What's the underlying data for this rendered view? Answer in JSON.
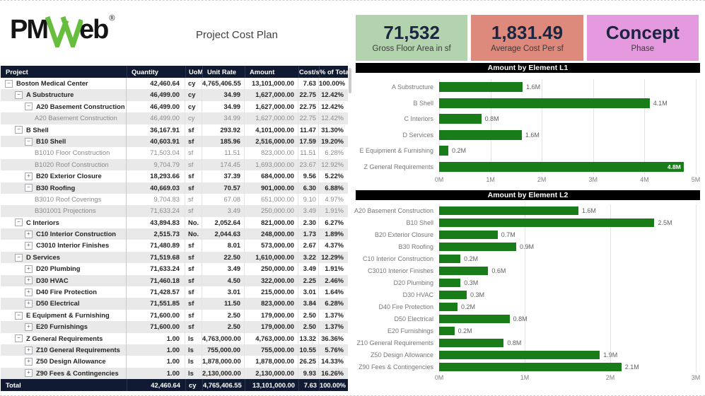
{
  "page": {
    "title": "Project Cost Plan",
    "brand": {
      "pm": "PM",
      "eb": "eb",
      "reg": "®",
      "w_icon_color": "#66bd3e"
    }
  },
  "kpis": [
    {
      "value": "71,532",
      "label": "Gross Floor Area in sf",
      "bg": "#b2d3ad"
    },
    {
      "value": "1,831.49",
      "label": "Average Cost Per sf",
      "bg": "#dd897c"
    },
    {
      "value": "Concept",
      "label": "Phase",
      "bg": "#e59ae0"
    }
  ],
  "table": {
    "header_bg": "#101b33",
    "columns": [
      "Project",
      "Quantity",
      "UoM",
      "Unit Rate",
      "Amount",
      "Cost/sf",
      "% of Total"
    ],
    "rows": [
      {
        "level": 0,
        "expand": "minus",
        "style": "strong",
        "cells": [
          "Boston Medical Center",
          "42,460.64",
          "cy",
          "4,765,406.55",
          "13,101,000.00",
          "7.63",
          "100.00%"
        ]
      },
      {
        "level": 1,
        "expand": "minus",
        "style": "strong",
        "cells": [
          "A Substructure",
          "46,499.00",
          "cy",
          "34.99",
          "1,627,000.00",
          "22.75",
          "12.42%"
        ]
      },
      {
        "level": 2,
        "expand": "minus",
        "style": "strong",
        "cells": [
          "A20 Basement Construction",
          "46,499.00",
          "cy",
          "34.99",
          "1,627,000.00",
          "22.75",
          "12.42%"
        ]
      },
      {
        "level": 3,
        "expand": null,
        "style": "leaf",
        "cells": [
          "A20 Basement Construction",
          "46,499.00",
          "cy",
          "34.99",
          "1,627,000.00",
          "22.75",
          "12.42%"
        ]
      },
      {
        "level": 1,
        "expand": "minus",
        "style": "strong",
        "cells": [
          "B Shell",
          "36,167.91",
          "sf",
          "293.92",
          "4,101,000.00",
          "11.47",
          "31.30%"
        ]
      },
      {
        "level": 2,
        "expand": "minus",
        "style": "strong",
        "cells": [
          "B10 Shell",
          "40,603.91",
          "sf",
          "185.96",
          "2,516,000.00",
          "17.59",
          "19.20%"
        ]
      },
      {
        "level": 3,
        "expand": null,
        "style": "leaf",
        "cells": [
          "B1010 Floor Construction",
          "71,503.04",
          "sf",
          "11.51",
          "823,000.00",
          "11.51",
          "6.28%"
        ]
      },
      {
        "level": 3,
        "expand": null,
        "style": "leaf",
        "cells": [
          "B1020 Roof Construction",
          "9,704.79",
          "sf",
          "174.45",
          "1,693,000.00",
          "23.67",
          "12.92%"
        ]
      },
      {
        "level": 2,
        "expand": "plus",
        "style": "strong",
        "cells": [
          "B20 Exterior Closure",
          "18,293.66",
          "sf",
          "37.39",
          "684,000.00",
          "9.56",
          "5.22%"
        ]
      },
      {
        "level": 2,
        "expand": "minus",
        "style": "strong",
        "cells": [
          "B30 Roofing",
          "40,669.03",
          "sf",
          "70.57",
          "901,000.00",
          "6.30",
          "6.88%"
        ]
      },
      {
        "level": 3,
        "expand": null,
        "style": "leaf",
        "cells": [
          "B3010 Roof Coverings",
          "9,704.83",
          "sf",
          "67.08",
          "651,000.00",
          "9.10",
          "4.97%"
        ]
      },
      {
        "level": 3,
        "expand": null,
        "style": "leaf",
        "cells": [
          "B301001 Projections",
          "71,633.24",
          "sf",
          "3.49",
          "250,000.00",
          "3.49",
          "1.91%"
        ]
      },
      {
        "level": 1,
        "expand": "minus",
        "style": "strong",
        "cells": [
          "C Interiors",
          "43,894.83",
          "No.",
          "2,052.64",
          "821,000.00",
          "2.30",
          "6.27%"
        ]
      },
      {
        "level": 2,
        "expand": "plus",
        "style": "strong",
        "cells": [
          "C10 Interior Construction",
          "2,515.73",
          "No.",
          "2,044.63",
          "248,000.00",
          "1.73",
          "1.89%"
        ]
      },
      {
        "level": 2,
        "expand": "plus",
        "style": "strong",
        "cells": [
          "C3010 Interior Finishes",
          "71,480.89",
          "sf",
          "8.01",
          "573,000.00",
          "2.67",
          "4.37%"
        ]
      },
      {
        "level": 1,
        "expand": "minus",
        "style": "strong",
        "cells": [
          "D Services",
          "71,519.68",
          "sf",
          "22.50",
          "1,610,000.00",
          "3.22",
          "12.29%"
        ]
      },
      {
        "level": 2,
        "expand": "plus",
        "style": "strong",
        "cells": [
          "D20 Plumbing",
          "71,633.24",
          "sf",
          "3.49",
          "250,000.00",
          "3.49",
          "1.91%"
        ]
      },
      {
        "level": 2,
        "expand": "plus",
        "style": "strong",
        "cells": [
          "D30 HVAC",
          "71,460.18",
          "sf",
          "4.50",
          "322,000.00",
          "2.25",
          "2.46%"
        ]
      },
      {
        "level": 2,
        "expand": "plus",
        "style": "strong",
        "cells": [
          "D40 Fire Protection",
          "71,428.57",
          "sf",
          "3.01",
          "215,000.00",
          "3.01",
          "1.64%"
        ]
      },
      {
        "level": 2,
        "expand": "plus",
        "style": "strong",
        "cells": [
          "D50 Electrical",
          "71,551.85",
          "sf",
          "11.50",
          "823,000.00",
          "3.84",
          "6.28%"
        ]
      },
      {
        "level": 1,
        "expand": "minus",
        "style": "strong",
        "cells": [
          "E Equipment & Furnishing",
          "71,600.00",
          "sf",
          "2.50",
          "179,000.00",
          "2.50",
          "1.37%"
        ]
      },
      {
        "level": 2,
        "expand": "plus",
        "style": "strong",
        "cells": [
          "E20 Furnishings",
          "71,600.00",
          "sf",
          "2.50",
          "179,000.00",
          "2.50",
          "1.37%"
        ]
      },
      {
        "level": 1,
        "expand": "minus",
        "style": "strong",
        "cells": [
          "Z General Requirements",
          "1.00",
          "ls",
          "4,763,000.00",
          "4,763,000.00",
          "13.32",
          "36.36%"
        ]
      },
      {
        "level": 2,
        "expand": "plus",
        "style": "strong",
        "cells": [
          "Z10 General Requirements",
          "1.00",
          "ls",
          "755,000.00",
          "755,000.00",
          "10.55",
          "5.76%"
        ]
      },
      {
        "level": 2,
        "expand": "plus",
        "style": "strong",
        "cells": [
          "Z50 Design Allowance",
          "1.00",
          "ls",
          "1,878,000.00",
          "1,878,000.00",
          "26.25",
          "14.33%"
        ]
      },
      {
        "level": 2,
        "expand": "plus",
        "style": "strong",
        "cells": [
          "Z90 Fees & Contingencies",
          "1.00",
          "ls",
          "2,130,000.00",
          "2,130,000.00",
          "9.93",
          "16.26%"
        ]
      }
    ],
    "total": {
      "cells": [
        "Total",
        "42,460.64",
        "cy",
        "4,765,406.55",
        "13,101,000.00",
        "7.63",
        "100.00%"
      ]
    }
  },
  "chart_data": [
    {
      "type": "bar",
      "orientation": "horizontal",
      "title": "Amount by Element L1",
      "title_bg": "#000000",
      "bar_color": "#187d18",
      "categories": [
        "A Substructure",
        "B Shell",
        "C Interiors",
        "D Services",
        "E Equipment & Furnishing",
        "Z General Requirements"
      ],
      "values_m": [
        1.627,
        4.101,
        0.821,
        1.61,
        0.179,
        4.763
      ],
      "values_label": [
        "1.6M",
        "4.1M",
        "0.8M",
        "1.6M",
        "0.2M",
        "4.8M"
      ],
      "inside_label_index": 5,
      "xlabel": "",
      "ylabel": "",
      "xlim": [
        0,
        5
      ],
      "ticks": [
        "0M",
        "1M",
        "2M",
        "3M",
        "4M",
        "5M"
      ],
      "grid": true,
      "legend": false
    },
    {
      "type": "bar",
      "orientation": "horizontal",
      "title": "Amount by Element L2",
      "title_bg": "#000000",
      "bar_color": "#187d18",
      "categories": [
        "A20 Basement Construction",
        "B10 Shell",
        "B20 Exterior Closure",
        "B30 Roofing",
        "C10 Interior Construction",
        "C3010 Interior Finishes",
        "D20 Plumbing",
        "D30 HVAC",
        "D40 Fire Protection",
        "D50 Electrical",
        "E20 Furnishings",
        "Z10 General Requirements",
        "Z50 Design Allowance",
        "Z90 Fees & Contingencies"
      ],
      "values_m": [
        1.627,
        2.516,
        0.684,
        0.901,
        0.248,
        0.573,
        0.25,
        0.322,
        0.215,
        0.823,
        0.179,
        0.755,
        1.878,
        2.13
      ],
      "values_label": [
        "1.6M",
        "2.5M",
        "0.7M",
        "0.9M",
        "0.2M",
        "0.6M",
        "0.3M",
        "0.3M",
        "0.2M",
        "0.8M",
        "0.2M",
        "0.8M",
        "1.9M",
        "2.1M"
      ],
      "inside_label_index": -1,
      "xlabel": "",
      "ylabel": "",
      "xlim": [
        0,
        3
      ],
      "ticks": [
        "0M",
        "1M",
        "2M",
        "3M"
      ],
      "grid": true,
      "legend": false
    }
  ]
}
